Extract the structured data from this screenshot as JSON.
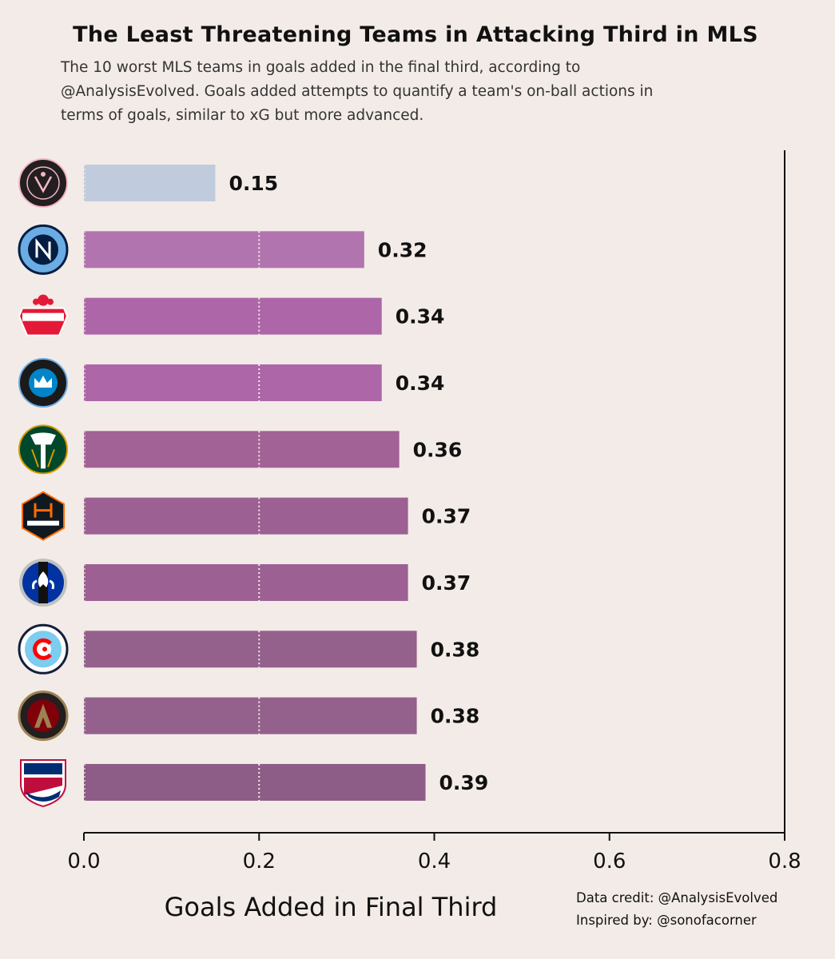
{
  "title": "The Least Threatening Teams in Attacking Third in MLS",
  "subtitle_lines": [
    "The 10 worst MLS teams in goals added in the final third, according to",
    "@AnalysisEvolved. Goals added attempts to quantify a team's on-ball actions in",
    "terms of goals, similar to xG but more advanced."
  ],
  "credits": {
    "data_credit": "Data credit: @AnalysisEvolved",
    "inspired_by": "Inspired by: @sonofacorner"
  },
  "chart_data": {
    "type": "bar",
    "orientation": "horizontal",
    "categories": [
      "Inter Miami CF",
      "New York City FC",
      "Toronto FC",
      "Charlotte FC",
      "Portland Timbers",
      "Houston Dynamo FC",
      "CF Montréal",
      "Chicago Fire FC",
      "Atlanta United FC",
      "FC Dallas"
    ],
    "values": [
      0.15,
      0.32,
      0.34,
      0.34,
      0.36,
      0.37,
      0.37,
      0.38,
      0.38,
      0.39
    ],
    "value_labels": [
      "0.15",
      "0.32",
      "0.34",
      "0.34",
      "0.36",
      "0.37",
      "0.37",
      "0.38",
      "0.38",
      "0.39"
    ],
    "bar_colors": [
      "#c0cbdd",
      "#b174ae",
      "#ad67a8",
      "#ad67a8",
      "#a26296",
      "#9c6093",
      "#9c6093",
      "#94608c",
      "#94608c",
      "#8e5d87"
    ],
    "xlabel": "Goals Added in Final Third",
    "ylabel": "",
    "xlim": [
      0,
      0.8
    ],
    "xticks": [
      0.0,
      0.2,
      0.4,
      0.6,
      0.8
    ],
    "xtick_labels": [
      "0.0",
      "0.2",
      "0.4",
      "0.6",
      "0.8"
    ],
    "reference_line": 0.2,
    "legend": "none",
    "grid": false,
    "logo_icons": [
      "inter-miami-logo-icon",
      "nycfc-logo-icon",
      "toronto-fc-logo-icon",
      "charlotte-fc-logo-icon",
      "portland-timbers-logo-icon",
      "houston-dynamo-logo-icon",
      "cf-montreal-logo-icon",
      "chicago-fire-logo-icon",
      "atlanta-united-logo-icon",
      "fc-dallas-logo-icon"
    ]
  }
}
